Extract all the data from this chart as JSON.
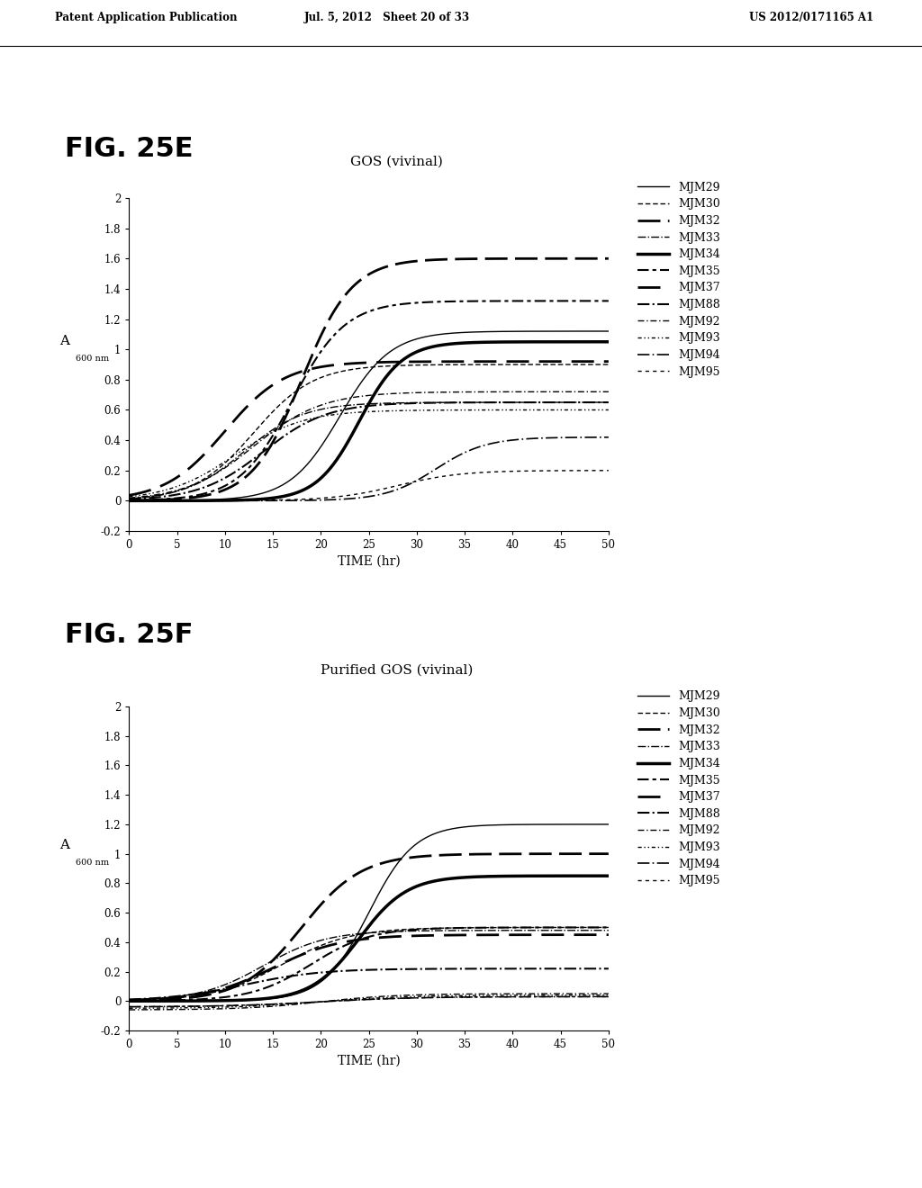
{
  "header_left": "Patent Application Publication",
  "header_mid": "Jul. 5, 2012   Sheet 20 of 33",
  "header_right": "US 2012/0171165 A1",
  "fig_e_label": "FIG. 25E",
  "fig_f_label": "FIG. 25F",
  "x_axis_label": "TIME (hr)",
  "title_e": "GOS (vivinal)",
  "title_f": "Purified GOS (vivinal)",
  "series_names": [
    "MJM29",
    "MJM30",
    "MJM32",
    "MJM33",
    "MJM34",
    "MJM35",
    "MJM37",
    "MJM88",
    "MJM92",
    "MJM93",
    "MJM94",
    "MJM95"
  ],
  "xlim": [
    0,
    50
  ],
  "ylim": [
    -0.2,
    2.0
  ],
  "yticks": [
    -0.2,
    0,
    0.2,
    0.4,
    0.6,
    0.8,
    1.0,
    1.2,
    1.4,
    1.6,
    1.8,
    2.0
  ],
  "xticks": [
    0,
    5,
    10,
    15,
    20,
    25,
    30,
    35,
    40,
    45,
    50
  ],
  "bg_color": "#ffffff",
  "line_color": "#000000",
  "curves_e": [
    [
      22,
      0.38,
      1.12,
      0.0
    ],
    [
      13,
      0.32,
      0.9,
      0.0
    ],
    [
      18,
      0.38,
      1.6,
      0.0
    ],
    [
      12,
      0.32,
      0.65,
      0.0
    ],
    [
      24,
      0.45,
      1.05,
      0.0
    ],
    [
      17,
      0.36,
      1.32,
      0.0
    ],
    [
      10,
      0.32,
      0.92,
      0.0
    ],
    [
      14,
      0.3,
      0.65,
      0.0
    ],
    [
      13,
      0.28,
      0.72,
      0.0
    ],
    [
      11,
      0.28,
      0.6,
      0.0
    ],
    [
      32,
      0.38,
      0.42,
      0.0
    ],
    [
      28,
      0.3,
      0.2,
      0.0
    ]
  ],
  "curves_f": [
    [
      25,
      0.42,
      1.2,
      0.0
    ],
    [
      16,
      0.28,
      0.5,
      0.0
    ],
    [
      18,
      0.32,
      1.0,
      0.0
    ],
    [
      14,
      0.3,
      0.48,
      0.0
    ],
    [
      24,
      0.4,
      0.85,
      0.0
    ],
    [
      19,
      0.32,
      0.5,
      0.0
    ],
    [
      15,
      0.28,
      0.45,
      0.0
    ],
    [
      12,
      0.25,
      0.22,
      0.0
    ],
    [
      20,
      0.25,
      0.05,
      -0.06
    ],
    [
      20,
      0.22,
      0.04,
      -0.05
    ],
    [
      20,
      0.2,
      0.03,
      -0.04
    ],
    [
      20,
      0.2,
      0.03,
      -0.04
    ]
  ]
}
